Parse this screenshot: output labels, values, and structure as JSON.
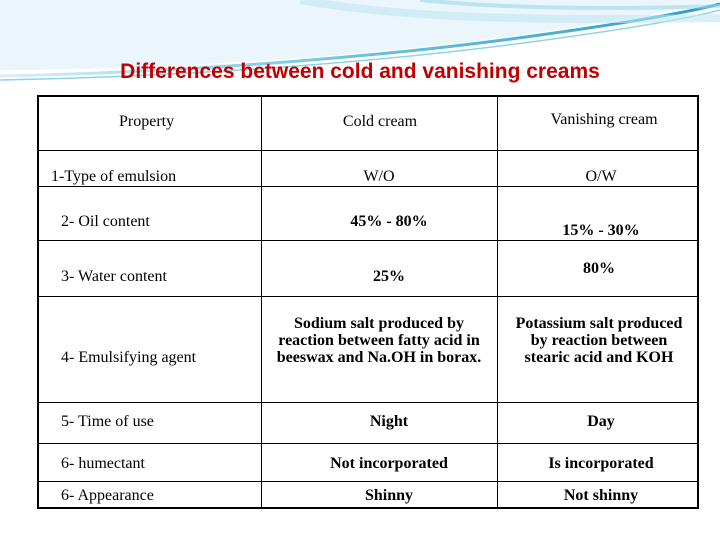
{
  "title": "Differences between cold and vanishing creams",
  "table": {
    "headers": [
      "Property",
      "Cold cream",
      "Vanishing cream"
    ],
    "rows": [
      {
        "property": "1-Type of emulsion",
        "cold": "W/O",
        "vanishing": "O/W"
      },
      {
        "property": "2- Oil content",
        "cold": "45% - 80%",
        "vanishing": "15% - 30%"
      },
      {
        "property": "3- Water content",
        "cold": "25%",
        "vanishing": "80%"
      },
      {
        "property": "4- Emulsifying agent",
        "cold": "Sodium salt produced by reaction between fatty acid in beeswax and Na.OH in borax.",
        "vanishing": "Potassium salt produced by reaction between stearic acid and KOH"
      },
      {
        "property": "5- Time of use",
        "cold": "Night",
        "vanishing": "Day"
      },
      {
        "property": "6- humectant",
        "cold": "Not incorporated",
        "vanishing": "Is incorporated"
      },
      {
        "property": "6- Appearance",
        "cold": "Shinny",
        "vanishing": "Not shinny"
      }
    ]
  }
}
